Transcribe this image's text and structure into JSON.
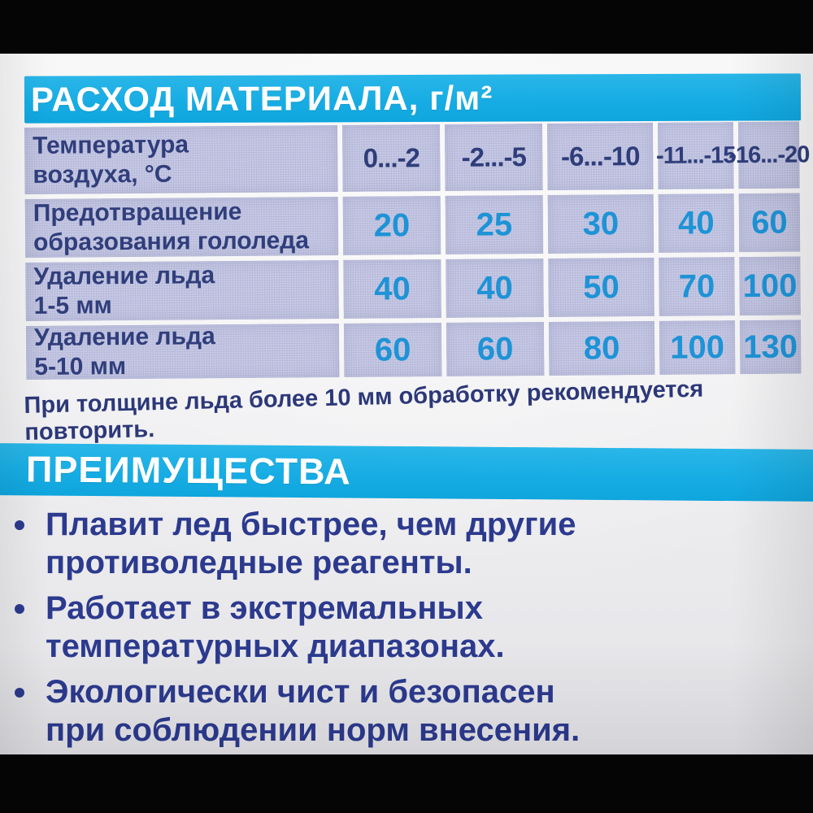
{
  "consumption": {
    "title": "РАСХОД МАТЕРИАЛА, г/м²",
    "table": {
      "corner_label": "Температура\nвоздуха, °C",
      "temp_ranges": [
        "0...-2",
        "-2...-5",
        "-6...-10",
        "-11...-15",
        "-16...-20"
      ],
      "rows": [
        {
          "label": "Предотвращение\nобразования гололеда",
          "values": [
            20,
            25,
            30,
            40,
            60
          ]
        },
        {
          "label": "Удаление льда\n1-5 мм",
          "values": [
            40,
            40,
            50,
            70,
            100
          ]
        },
        {
          "label": "Удаление льда\n5-10 мм",
          "values": [
            60,
            60,
            80,
            100,
            130
          ]
        }
      ]
    },
    "note": "При толщине льда более 10 мм обработку рекомендуется повторить."
  },
  "advantages": {
    "title": "ПРЕИМУЩЕСТВА",
    "items": [
      "Плавит лед быстрее, чем другие\nпротиволедные реагенты.",
      "Работает в экстремальных\nтемпературных диапазонах.",
      "Экологически чист и безопасен\nпри соблюдении норм внесения."
    ]
  },
  "colors": {
    "banner_blue": "#17ade4",
    "cell_lavender": "#b7badb",
    "header_navy": "#2f3d7a",
    "value_cyan": "#1e93d6",
    "bullet_navy": "#2c3a8e",
    "package_white": "#f0f0f2",
    "letterbox_black": "#050505"
  }
}
